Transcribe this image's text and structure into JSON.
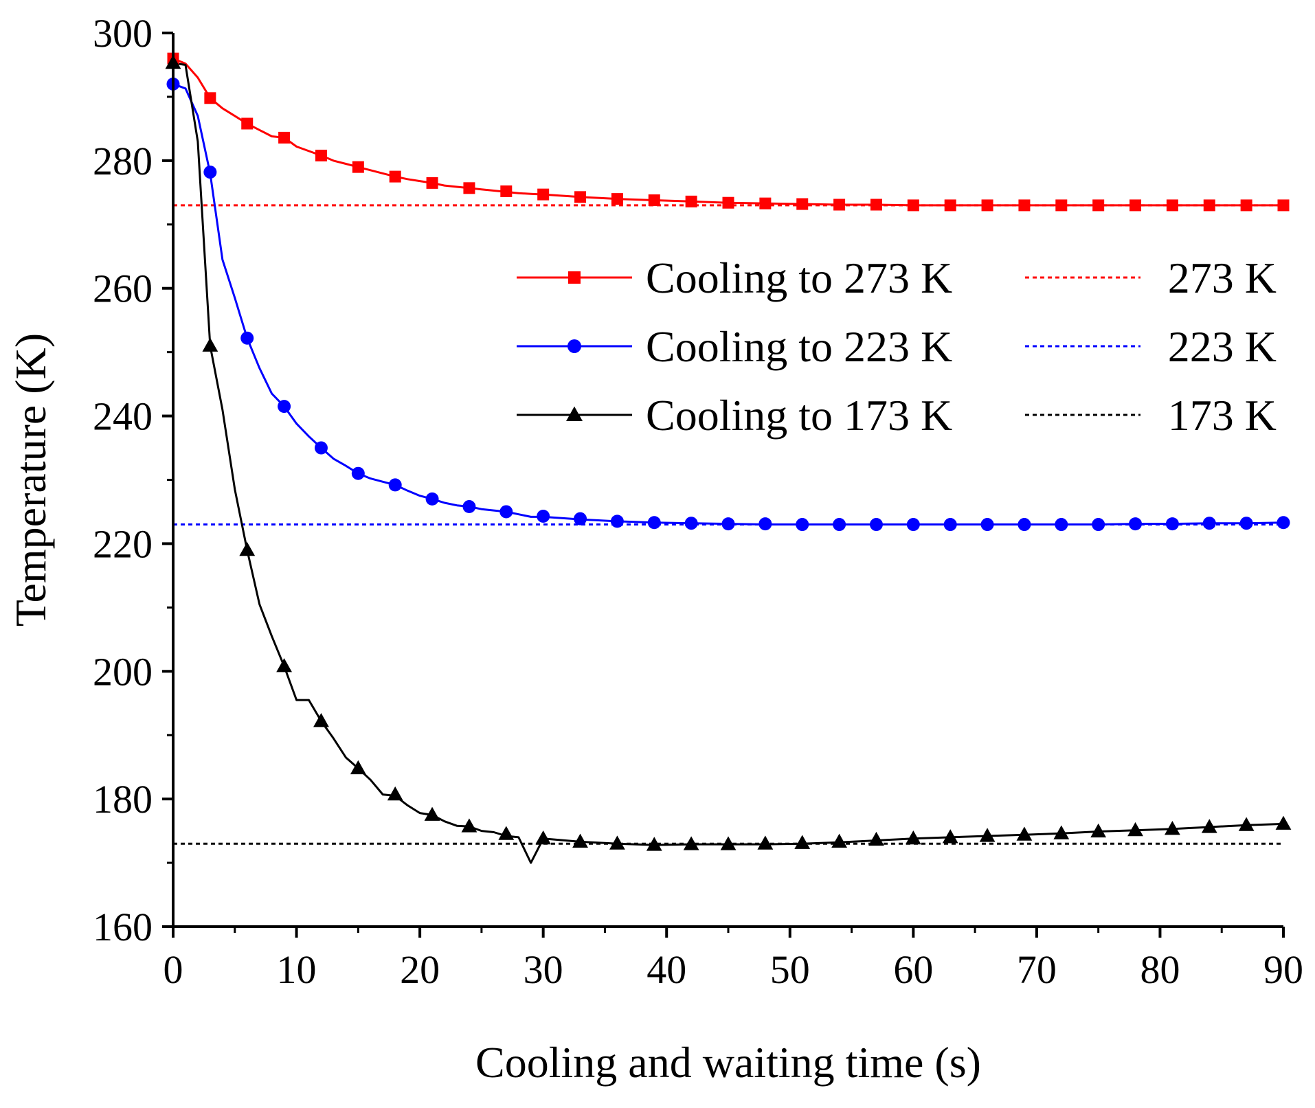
{
  "chart_data": {
    "type": "line",
    "title": "",
    "xlabel": "Cooling and waiting time (s)",
    "ylabel": "Temperature (K)",
    "xlim": [
      0,
      90
    ],
    "ylim": [
      160,
      300
    ],
    "xticks": [
      0,
      10,
      20,
      30,
      40,
      50,
      60,
      70,
      80,
      90
    ],
    "xtick_labels": [
      "0",
      "10",
      "20",
      "30",
      "40",
      "50",
      "60",
      "70",
      "80",
      "90"
    ],
    "yticks": [
      160,
      180,
      200,
      220,
      240,
      260,
      280,
      300
    ],
    "ytick_labels": [
      "160",
      "180",
      "200",
      "220",
      "240",
      "260",
      "280",
      "300"
    ],
    "grid": false,
    "legend_position": "right",
    "series": [
      {
        "name": "Cooling to 273 K",
        "color": "#ff0000",
        "marker": "square",
        "line": [
          [
            0,
            296
          ],
          [
            1,
            295.2
          ],
          [
            2,
            293
          ],
          [
            3,
            289.8
          ],
          [
            4,
            288.2
          ],
          [
            5,
            287
          ],
          [
            6,
            285.8
          ],
          [
            7,
            284.8
          ],
          [
            8,
            283.8
          ],
          [
            9,
            283.6
          ],
          [
            10,
            282.2
          ],
          [
            11,
            281.5
          ],
          [
            12,
            280.8
          ],
          [
            13,
            280
          ],
          [
            14,
            279.5
          ],
          [
            15,
            279
          ],
          [
            16,
            278.5
          ],
          [
            17,
            278
          ],
          [
            18,
            277.5
          ],
          [
            19,
            277.1
          ],
          [
            20,
            276.8
          ],
          [
            21,
            276.5
          ],
          [
            22,
            276.1
          ],
          [
            23,
            275.9
          ],
          [
            24,
            275.7
          ],
          [
            25,
            275.5
          ],
          [
            26,
            275.3
          ],
          [
            27,
            275.1
          ],
          [
            28,
            274.9
          ],
          [
            29,
            274.8
          ],
          [
            30,
            274.7
          ],
          [
            33,
            274.3
          ],
          [
            36,
            274
          ],
          [
            39,
            273.8
          ],
          [
            42,
            273.6
          ],
          [
            45,
            273.4
          ],
          [
            48,
            273.3
          ],
          [
            51,
            273.2
          ],
          [
            54,
            273.1
          ],
          [
            57,
            273.1
          ],
          [
            60,
            273
          ],
          [
            63,
            273
          ],
          [
            66,
            273
          ],
          [
            69,
            273
          ],
          [
            72,
            273
          ],
          [
            75,
            273
          ],
          [
            78,
            273
          ],
          [
            81,
            273
          ],
          [
            84,
            273
          ],
          [
            87,
            273
          ],
          [
            90,
            273
          ]
        ],
        "marker_points": [
          [
            0,
            296
          ],
          [
            3,
            289.8
          ],
          [
            6,
            285.8
          ],
          [
            9,
            283.6
          ],
          [
            12,
            280.8
          ],
          [
            15,
            279
          ],
          [
            18,
            277.5
          ],
          [
            21,
            276.5
          ],
          [
            24,
            275.7
          ],
          [
            27,
            275.2
          ],
          [
            30,
            274.7
          ],
          [
            33,
            274.3
          ],
          [
            36,
            274
          ],
          [
            39,
            273.8
          ],
          [
            42,
            273.6
          ],
          [
            45,
            273.4
          ],
          [
            48,
            273.3
          ],
          [
            51,
            273.2
          ],
          [
            54,
            273.1
          ],
          [
            57,
            273.1
          ],
          [
            60,
            273
          ],
          [
            63,
            273
          ],
          [
            66,
            273
          ],
          [
            69,
            273
          ],
          [
            72,
            273
          ],
          [
            75,
            273
          ],
          [
            78,
            273
          ],
          [
            81,
            273
          ],
          [
            84,
            273
          ],
          [
            87,
            273
          ],
          [
            90,
            273
          ]
        ]
      },
      {
        "name": "Cooling to 223 K",
        "color": "#0000ff",
        "marker": "circle",
        "line": [
          [
            0,
            292
          ],
          [
            1,
            291.3
          ],
          [
            2,
            287
          ],
          [
            3,
            278
          ],
          [
            4,
            264.5
          ],
          [
            5,
            258.5
          ],
          [
            6,
            252.2
          ],
          [
            7,
            247.5
          ],
          [
            8,
            243.5
          ],
          [
            9,
            241.5
          ],
          [
            10,
            238.8
          ],
          [
            11,
            236.8
          ],
          [
            12,
            235
          ],
          [
            13,
            233.3
          ],
          [
            14,
            232.2
          ],
          [
            15,
            231
          ],
          [
            16,
            230.2
          ],
          [
            17,
            229.7
          ],
          [
            18,
            229.2
          ],
          [
            19,
            228.3
          ],
          [
            20,
            227.5
          ],
          [
            21,
            227
          ],
          [
            22,
            226.4
          ],
          [
            23,
            226
          ],
          [
            24,
            225.8
          ],
          [
            25,
            225.4
          ],
          [
            26,
            225.2
          ],
          [
            27,
            225
          ],
          [
            28,
            224.6
          ],
          [
            29,
            224.2
          ],
          [
            30,
            224.2
          ],
          [
            33,
            223.8
          ],
          [
            36,
            223.5
          ],
          [
            39,
            223.3
          ],
          [
            42,
            223.2
          ],
          [
            45,
            223.1
          ],
          [
            48,
            223
          ],
          [
            51,
            223
          ],
          [
            54,
            223
          ],
          [
            57,
            223
          ],
          [
            60,
            223
          ],
          [
            63,
            223
          ],
          [
            66,
            223
          ],
          [
            69,
            223
          ],
          [
            72,
            223
          ],
          [
            75,
            223
          ],
          [
            78,
            223.1
          ],
          [
            81,
            223.1
          ],
          [
            84,
            223.2
          ],
          [
            87,
            223.2
          ],
          [
            90,
            223.3
          ]
        ],
        "marker_points": [
          [
            0,
            292
          ],
          [
            3,
            278.2
          ],
          [
            6,
            252.2
          ],
          [
            9,
            241.5
          ],
          [
            12,
            235
          ],
          [
            15,
            231
          ],
          [
            18,
            229.2
          ],
          [
            21,
            227
          ],
          [
            24,
            225.8
          ],
          [
            27,
            225
          ],
          [
            30,
            224.3
          ],
          [
            33,
            223.9
          ],
          [
            36,
            223.5
          ],
          [
            39,
            223.3
          ],
          [
            42,
            223.2
          ],
          [
            45,
            223.1
          ],
          [
            48,
            223.1
          ],
          [
            51,
            223
          ],
          [
            54,
            223
          ],
          [
            57,
            223
          ],
          [
            60,
            223
          ],
          [
            63,
            223
          ],
          [
            66,
            223
          ],
          [
            69,
            223
          ],
          [
            72,
            223
          ],
          [
            75,
            223
          ],
          [
            78,
            223.1
          ],
          [
            81,
            223.1
          ],
          [
            84,
            223.2
          ],
          [
            87,
            223.2
          ],
          [
            90,
            223.3
          ]
        ]
      },
      {
        "name": "Cooling to 173 K",
        "color": "#000000",
        "marker": "triangle",
        "line": [
          [
            0,
            295.3
          ],
          [
            1,
            295
          ],
          [
            2,
            283
          ],
          [
            3,
            251
          ],
          [
            4,
            241
          ],
          [
            5,
            228.5
          ],
          [
            6,
            219
          ],
          [
            7,
            210.5
          ],
          [
            8,
            205.5
          ],
          [
            9,
            200.8
          ],
          [
            10,
            195.5
          ],
          [
            11,
            195.5
          ],
          [
            12,
            192.2
          ],
          [
            13,
            189.5
          ],
          [
            14,
            186.5
          ],
          [
            15,
            184.8
          ],
          [
            16,
            183
          ],
          [
            17,
            180.7
          ],
          [
            18,
            180.5
          ],
          [
            19,
            179
          ],
          [
            20,
            177.8
          ],
          [
            21,
            177.5
          ],
          [
            22,
            176.5
          ],
          [
            23,
            175.8
          ],
          [
            24,
            175.7
          ],
          [
            25,
            175
          ],
          [
            26,
            174.8
          ],
          [
            27,
            174.2
          ],
          [
            28,
            174
          ],
          [
            29,
            170
          ],
          [
            30,
            173.8
          ],
          [
            33,
            173.3
          ],
          [
            36,
            173
          ],
          [
            39,
            172.8
          ],
          [
            42,
            172.9
          ],
          [
            45,
            172.9
          ],
          [
            48,
            172.9
          ],
          [
            51,
            173
          ],
          [
            54,
            173.2
          ],
          [
            57,
            173.5
          ],
          [
            60,
            173.8
          ],
          [
            63,
            174
          ],
          [
            66,
            174.2
          ],
          [
            69,
            174.4
          ],
          [
            72,
            174.6
          ],
          [
            75,
            174.9
          ],
          [
            78,
            175.1
          ],
          [
            81,
            175.3
          ],
          [
            84,
            175.6
          ],
          [
            87,
            175.9
          ],
          [
            90,
            176.1
          ]
        ],
        "marker_points": [
          [
            0,
            295.3
          ],
          [
            3,
            251
          ],
          [
            6,
            219
          ],
          [
            9,
            200.8
          ],
          [
            12,
            192.2
          ],
          [
            15,
            184.8
          ],
          [
            18,
            180.7
          ],
          [
            21,
            177.5
          ],
          [
            24,
            175.7
          ],
          [
            27,
            174.5
          ],
          [
            30,
            173.8
          ],
          [
            33,
            173.3
          ],
          [
            36,
            173
          ],
          [
            39,
            172.8
          ],
          [
            42,
            172.9
          ],
          [
            45,
            172.9
          ],
          [
            48,
            173
          ],
          [
            51,
            173.1
          ],
          [
            54,
            173.3
          ],
          [
            57,
            173.6
          ],
          [
            60,
            173.8
          ],
          [
            63,
            174
          ],
          [
            66,
            174.2
          ],
          [
            69,
            174.4
          ],
          [
            72,
            174.6
          ],
          [
            75,
            174.9
          ],
          [
            78,
            175.1
          ],
          [
            81,
            175.3
          ],
          [
            84,
            175.6
          ],
          [
            87,
            175.9
          ],
          [
            90,
            176.1
          ]
        ]
      }
    ],
    "reference_lines": [
      {
        "name": "273 K",
        "value": 273,
        "color": "#ff0000",
        "style": "dotted"
      },
      {
        "name": "223 K",
        "value": 223,
        "color": "#0000ff",
        "style": "dotted"
      },
      {
        "name": "173 K",
        "value": 173,
        "color": "#000000",
        "style": "dotted"
      }
    ]
  }
}
